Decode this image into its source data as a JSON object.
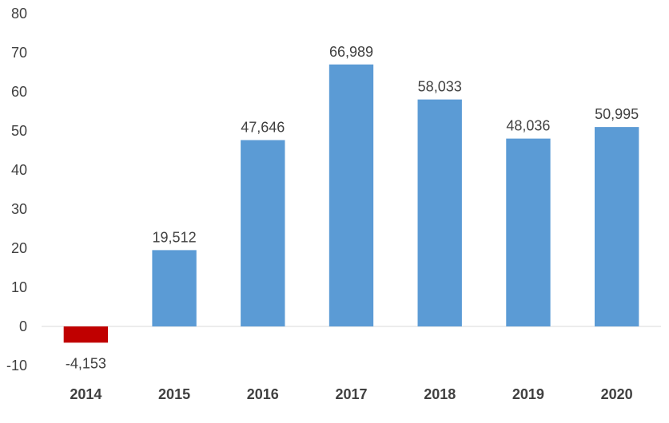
{
  "chart_data": {
    "type": "bar",
    "title": "",
    "xlabel": "",
    "ylabel": "",
    "categories": [
      "2014",
      "2015",
      "2016",
      "2017",
      "2018",
      "2019",
      "2020"
    ],
    "values": [
      -4.153,
      19.512,
      47.646,
      66.989,
      58.033,
      48.036,
      50.995
    ],
    "data_labels": [
      "-4,153",
      "19,512",
      "47,646",
      "66,989",
      "58,033",
      "48,036",
      "50,995"
    ],
    "ylim": [
      -10,
      80
    ],
    "yticks": [
      -10,
      0,
      10,
      20,
      30,
      40,
      50,
      60,
      70,
      80
    ],
    "ytick_labels": [
      "-10",
      "0",
      "10",
      "20",
      "30",
      "40",
      "50",
      "60",
      "70",
      "80"
    ],
    "grid": false,
    "legend": "none",
    "colors": {
      "positive": "#5b9bd5",
      "negative": "#c00000"
    }
  }
}
